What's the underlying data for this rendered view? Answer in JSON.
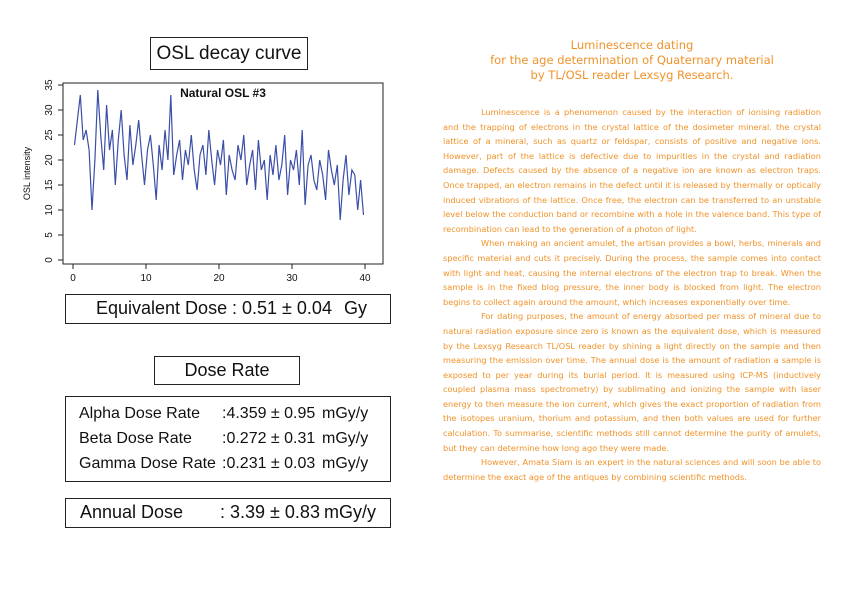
{
  "osl": {
    "title": "OSL decay curve"
  },
  "chart_data": {
    "type": "line",
    "title": "Natural OSL #3",
    "xlabel": "",
    "ylabel": "OSL intensity",
    "xlim": [
      0,
      40
    ],
    "ylim": [
      0,
      35
    ],
    "xticks": [
      "0",
      "10",
      "20",
      "30",
      "40"
    ],
    "yticks": [
      "0",
      "5",
      "10",
      "15",
      "20",
      "25",
      "30",
      "35"
    ],
    "color": "#3b4ea8",
    "series": [
      {
        "x": [
          0.2,
          0.6,
          1.0,
          1.4,
          1.8,
          2.2,
          2.6,
          3.0,
          3.4,
          3.8,
          4.2,
          4.6,
          5.0,
          5.4,
          5.8,
          6.2,
          6.6,
          7.0,
          7.4,
          7.8,
          8.2,
          8.6,
          9.0,
          9.4,
          9.8,
          10.2,
          10.6,
          11.0,
          11.4,
          11.8,
          12.2,
          12.6,
          13.0,
          13.4,
          13.8,
          14.2,
          14.6,
          15.0,
          15.4,
          15.8,
          16.2,
          16.6,
          17.0,
          17.4,
          17.8,
          18.2,
          18.6,
          19.0,
          19.4,
          19.8,
          20.2,
          20.6,
          21.0,
          21.4,
          21.8,
          22.2,
          22.6,
          23.0,
          23.4,
          23.8,
          24.2,
          24.6,
          25.0,
          25.4,
          25.8,
          26.2,
          26.6,
          27.0,
          27.4,
          27.8,
          28.2,
          28.6,
          29.0,
          29.4,
          29.8,
          30.2,
          30.6,
          31.0,
          31.4,
          31.8,
          32.2,
          32.6,
          33.0,
          33.4,
          33.8,
          34.2,
          34.6,
          35.0,
          35.4,
          35.8,
          36.2,
          36.6,
          37.0,
          37.4,
          37.8,
          38.2,
          38.6,
          39.0,
          39.4,
          39.8
        ],
        "values": [
          23,
          28,
          33,
          24,
          26,
          22,
          10,
          20,
          34,
          25,
          18,
          31,
          22,
          26,
          15,
          24,
          30,
          21,
          16,
          27,
          19,
          23,
          28,
          21,
          15,
          22,
          25,
          19,
          12,
          23,
          18,
          26,
          20,
          33,
          17,
          21,
          24,
          16,
          22,
          19,
          25,
          18,
          14,
          21,
          23,
          17,
          26,
          20,
          15,
          22,
          19,
          24,
          13,
          21,
          18,
          16,
          23,
          20,
          25,
          15,
          19,
          22,
          14,
          24,
          18,
          20,
          12,
          21,
          17,
          23,
          16,
          19,
          25,
          13,
          20,
          18,
          22,
          15,
          26,
          11,
          19,
          21,
          16,
          14,
          20,
          17,
          12,
          22,
          18,
          15,
          19,
          8,
          16,
          21,
          13,
          18,
          17,
          10,
          16,
          9
        ]
      }
    ]
  },
  "equivalent_dose": {
    "label": "Equivalent Dose",
    "value": ": 0.51 ± 0.04",
    "unit": "Gy"
  },
  "dose_rate": {
    "title": "Dose Rate",
    "rows": [
      {
        "label": "Alpha Dose Rate",
        "value": ":4.359 ± 0.95",
        "unit": "mGy/y"
      },
      {
        "label": "Beta Dose Rate",
        "value": ":0.272 ± 0.31",
        "unit": "mGy/y"
      },
      {
        "label": "Gamma Dose Rate",
        "value": ":0.231 ± 0.03",
        "unit": "mGy/y"
      }
    ]
  },
  "annual_dose": {
    "label": "Annual Dose",
    "value": ": 3.39 ± 0.83",
    "unit": "mGy/y"
  },
  "article": {
    "title_lines": [
      "Luminescence dating",
      "for the age determination of Quaternary material",
      "by TL/OSL reader Lexsyg Research."
    ],
    "paragraphs": [
      "Luminescence is a phenomenon caused by the interaction of ionising radiation and the trapping of electrons in the crystal lattice of the dosimeter mineral. the crystal lattice of a mineral, such as quartz or feldspar, consists of positive and negative ions. However, part of the lattice is defective due to impurities in the crystal and radiation damage. Defects caused by the absence of a negative ion are known as electron traps. Once trapped, an electron remains in the defect until it is released by thermally or optically induced vibrations of the lattice. Once free, the electron can be transferred to an unstable level below the conduction band or recombine with a hole in the valence band. This type of recombination can lead to the generation of a photon of light.",
      "When making an ancient amulet, the artisan provides a bowl, herbs, minerals and specific material and cuts it precisely. During the process, the sample comes into contact with light and heat, causing the internal electrons of the electron trap to break. When the sample is in the fixed blog pressure, the inner body is blocked from light. The electron begins to collect again around the amount, which increases exponentially over time.",
      "For dating purposes, the amount of energy absorbed per mass of mineral due to natural radiation exposure since zero is known as the equivalent dose, which is measured by the Lexsyg Research TL/OSL reader by shining a light directly on the sample and then measuring the emission over time. The annual dose is the amount of radiation a sample is exposed to per year during its burial period. It is measured using ICP-MS (inductively coupled plasma mass spectrometry) by sublimating and ionizing the sample with laser energy to then measure the ion current, which gives the exact proportion of radiation from the isotopes uranium, thorium and potassium, and then both values are used for further calculation. To summarise, scientific methods still cannot determine the purity of amulets, but they can determine how long ago they were made.",
      "However, Amata Siam is an expert in the natural sciences and will soon be able to determine the exact age of the antiques by combining scientific methods."
    ]
  }
}
